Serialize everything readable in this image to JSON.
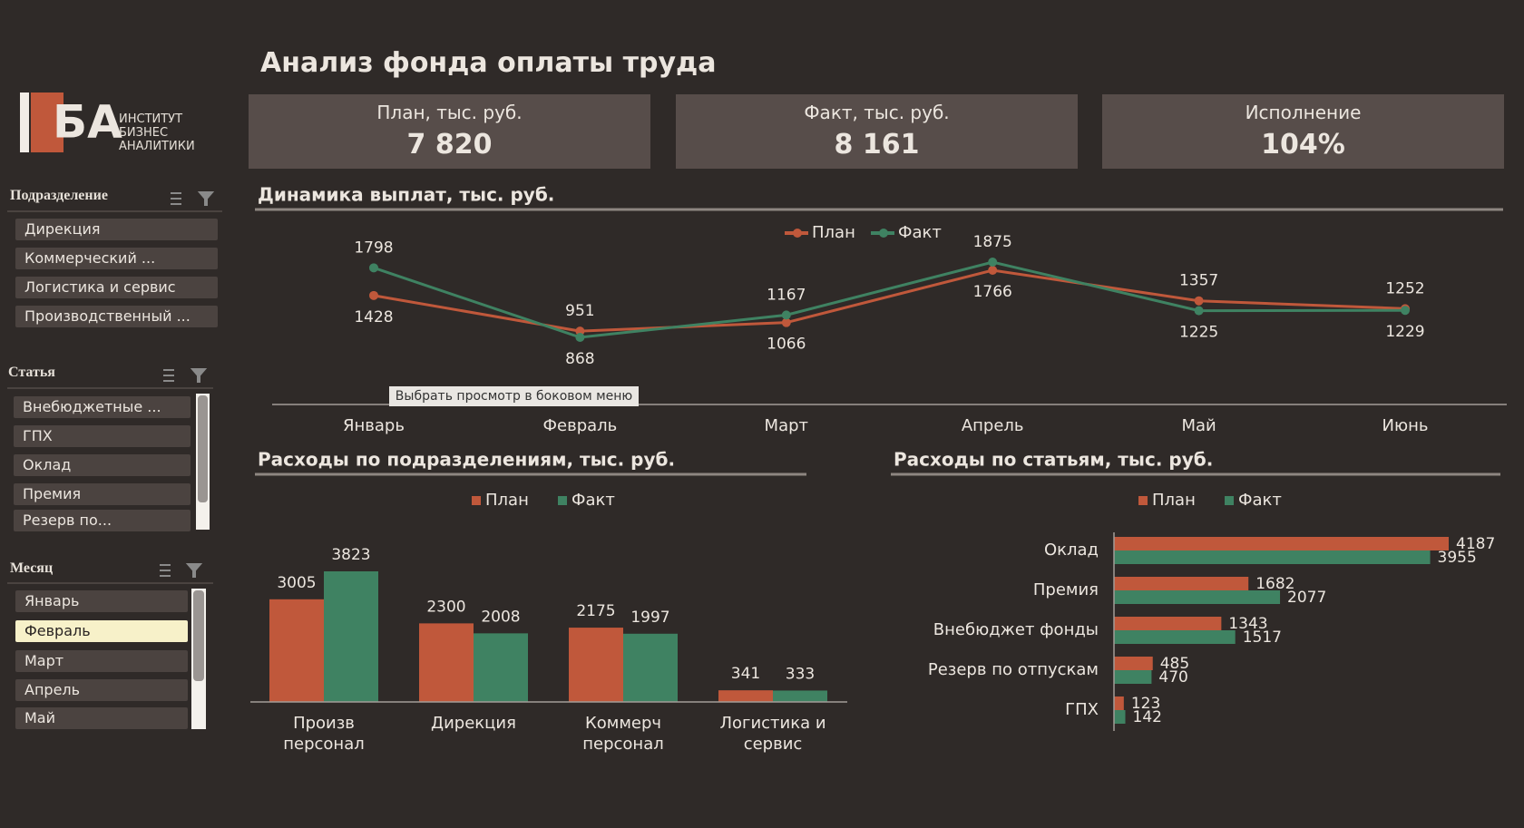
{
  "title": "Анализ фонда оплаты труда",
  "logo": {
    "mark": "БА",
    "lines": [
      "ИНСТИТУТ",
      "БИЗНЕС",
      "АНАЛИТИКИ"
    ]
  },
  "kpis": [
    {
      "label": "План, тыс. руб.",
      "value": "7 820"
    },
    {
      "label": "Факт, тыс. руб.",
      "value": "8 161"
    },
    {
      "label": "Исполнение",
      "value": "104%"
    }
  ],
  "slicers": [
    {
      "title": "Подразделение",
      "items": [
        "Дирекция",
        "Коммерческий ...",
        "Логистика и сервис",
        "Производственный ..."
      ]
    },
    {
      "title": "Статья",
      "items": [
        "Внебюджетные ...",
        "ГПХ",
        "Оклад",
        "Премия",
        "Резерв по..."
      ]
    },
    {
      "title": "Месяц",
      "items": [
        "Январь",
        "Февраль",
        "Март",
        "Апрель",
        "Май"
      ],
      "selected": 1
    }
  ],
  "tooltip": "Выбрать просмотр в боковом меню",
  "chart_data": [
    {
      "type": "line",
      "title": "Динамика выплат, тыс. руб.",
      "categories": [
        "Январь",
        "Февраль",
        "Март",
        "Апрель",
        "Май",
        "Июнь"
      ],
      "series": [
        {
          "name": "План",
          "color": "#c0583b",
          "values": [
            1428,
            951,
            1066,
            1766,
            1357,
            1252
          ]
        },
        {
          "name": "Факт",
          "color": "#3f8262",
          "values": [
            1798,
            868,
            1167,
            1875,
            1225,
            1229
          ]
        }
      ]
    },
    {
      "type": "bar",
      "title": "Расходы по подразделениям, тыс. руб.",
      "categories": [
        "Произв персонал",
        "Дирекция",
        "Коммерч персонал",
        "Логистика и сервис"
      ],
      "series": [
        {
          "name": "План",
          "color": "#c0583b",
          "values": [
            3005,
            2300,
            2175,
            341
          ]
        },
        {
          "name": "Факт",
          "color": "#3f8262",
          "values": [
            3823,
            2008,
            1997,
            333
          ]
        }
      ]
    },
    {
      "type": "barh",
      "title": "Расходы по статьям, тыс. руб.",
      "categories": [
        "Оклад",
        "Премия",
        "Внебюджет фонды",
        "Резерв по отпускам",
        "ГПХ"
      ],
      "series": [
        {
          "name": "План",
          "color": "#c0583b",
          "values": [
            4187,
            1682,
            1343,
            485,
            123
          ]
        },
        {
          "name": "Факт",
          "color": "#3f8262",
          "values": [
            3955,
            2077,
            1517,
            470,
            142
          ]
        }
      ]
    }
  ]
}
